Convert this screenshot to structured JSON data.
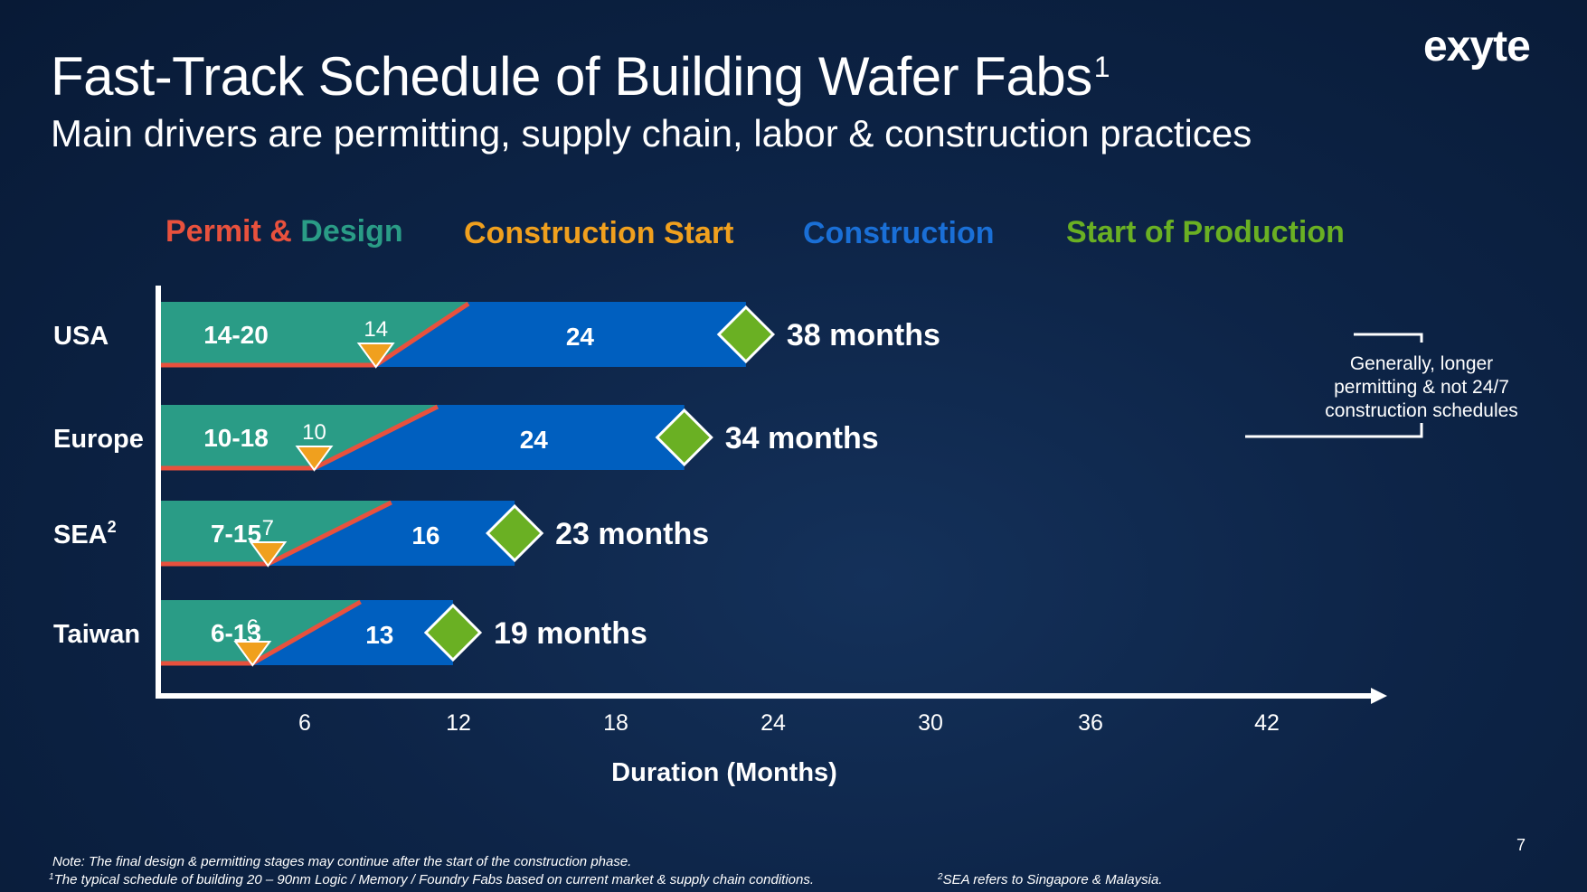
{
  "slide": {
    "title": "Fast-Track Schedule of Building Wafer Fabs",
    "title_sup": "1",
    "subtitle": "Main drivers are permitting, supply chain, labor & construction practices",
    "logo": "exyte",
    "page_number": "7",
    "notes": {
      "note": "Note: The final design & permitting stages may continue after the start of the construction phase.",
      "footnote1_marker": "1",
      "footnote1": "The typical schedule of building 20 – 90nm Logic / Memory / Foundry Fabs based on current market & supply chain conditions.",
      "footnote2_marker": "2",
      "footnote2": "SEA refers to Singapore & Malaysia."
    }
  },
  "colors": {
    "permit": "#e8513d",
    "design": "#2a9c86",
    "construction_start": "#f0a01e",
    "construction": "#005fbf",
    "production": "#6ab023",
    "background": "#0d2447"
  },
  "legend": {
    "permit": "Permit",
    "amp": " & ",
    "design": "Design",
    "construction_start": "Construction Start",
    "construction": "Construction",
    "start_of_production": "Start of Production"
  },
  "annotation": {
    "text_lines": [
      "Generally, longer",
      "permitting & not 24/7",
      "construction schedules"
    ],
    "applies_to": [
      "USA",
      "Europe"
    ]
  },
  "chart_data": {
    "type": "bar",
    "orientation": "horizontal",
    "stacked": true,
    "categories": [
      "USA",
      "Europe",
      "SEA",
      "Taiwan"
    ],
    "category_superscripts": [
      "",
      "",
      "2",
      ""
    ],
    "permit_design_range_labels": [
      "14-20",
      "10-18",
      "7-15",
      "6-13"
    ],
    "permit_design_end_months": [
      20,
      18,
      15,
      13
    ],
    "construction_start_months": [
      14,
      10,
      7,
      6
    ],
    "construction_start_labels": [
      "14",
      "10",
      "7",
      "6"
    ],
    "construction_duration_labels": [
      "24",
      "24",
      "16",
      "13"
    ],
    "construction_durations": [
      24,
      24,
      16,
      13
    ],
    "total_months": [
      38,
      34,
      23,
      19
    ],
    "total_labels": [
      "38 months",
      "34 months",
      "23 months",
      "19 months"
    ],
    "xlabel": "Duration (Months)",
    "ylabel": "",
    "x_ticks": [
      6,
      12,
      18,
      24,
      30,
      36,
      42
    ],
    "x_tick_labels": [
      "6",
      "12",
      "18",
      "24",
      "30",
      "36",
      "42"
    ],
    "xlim": [
      0,
      45
    ],
    "grid": false,
    "legend_placement": "top"
  }
}
